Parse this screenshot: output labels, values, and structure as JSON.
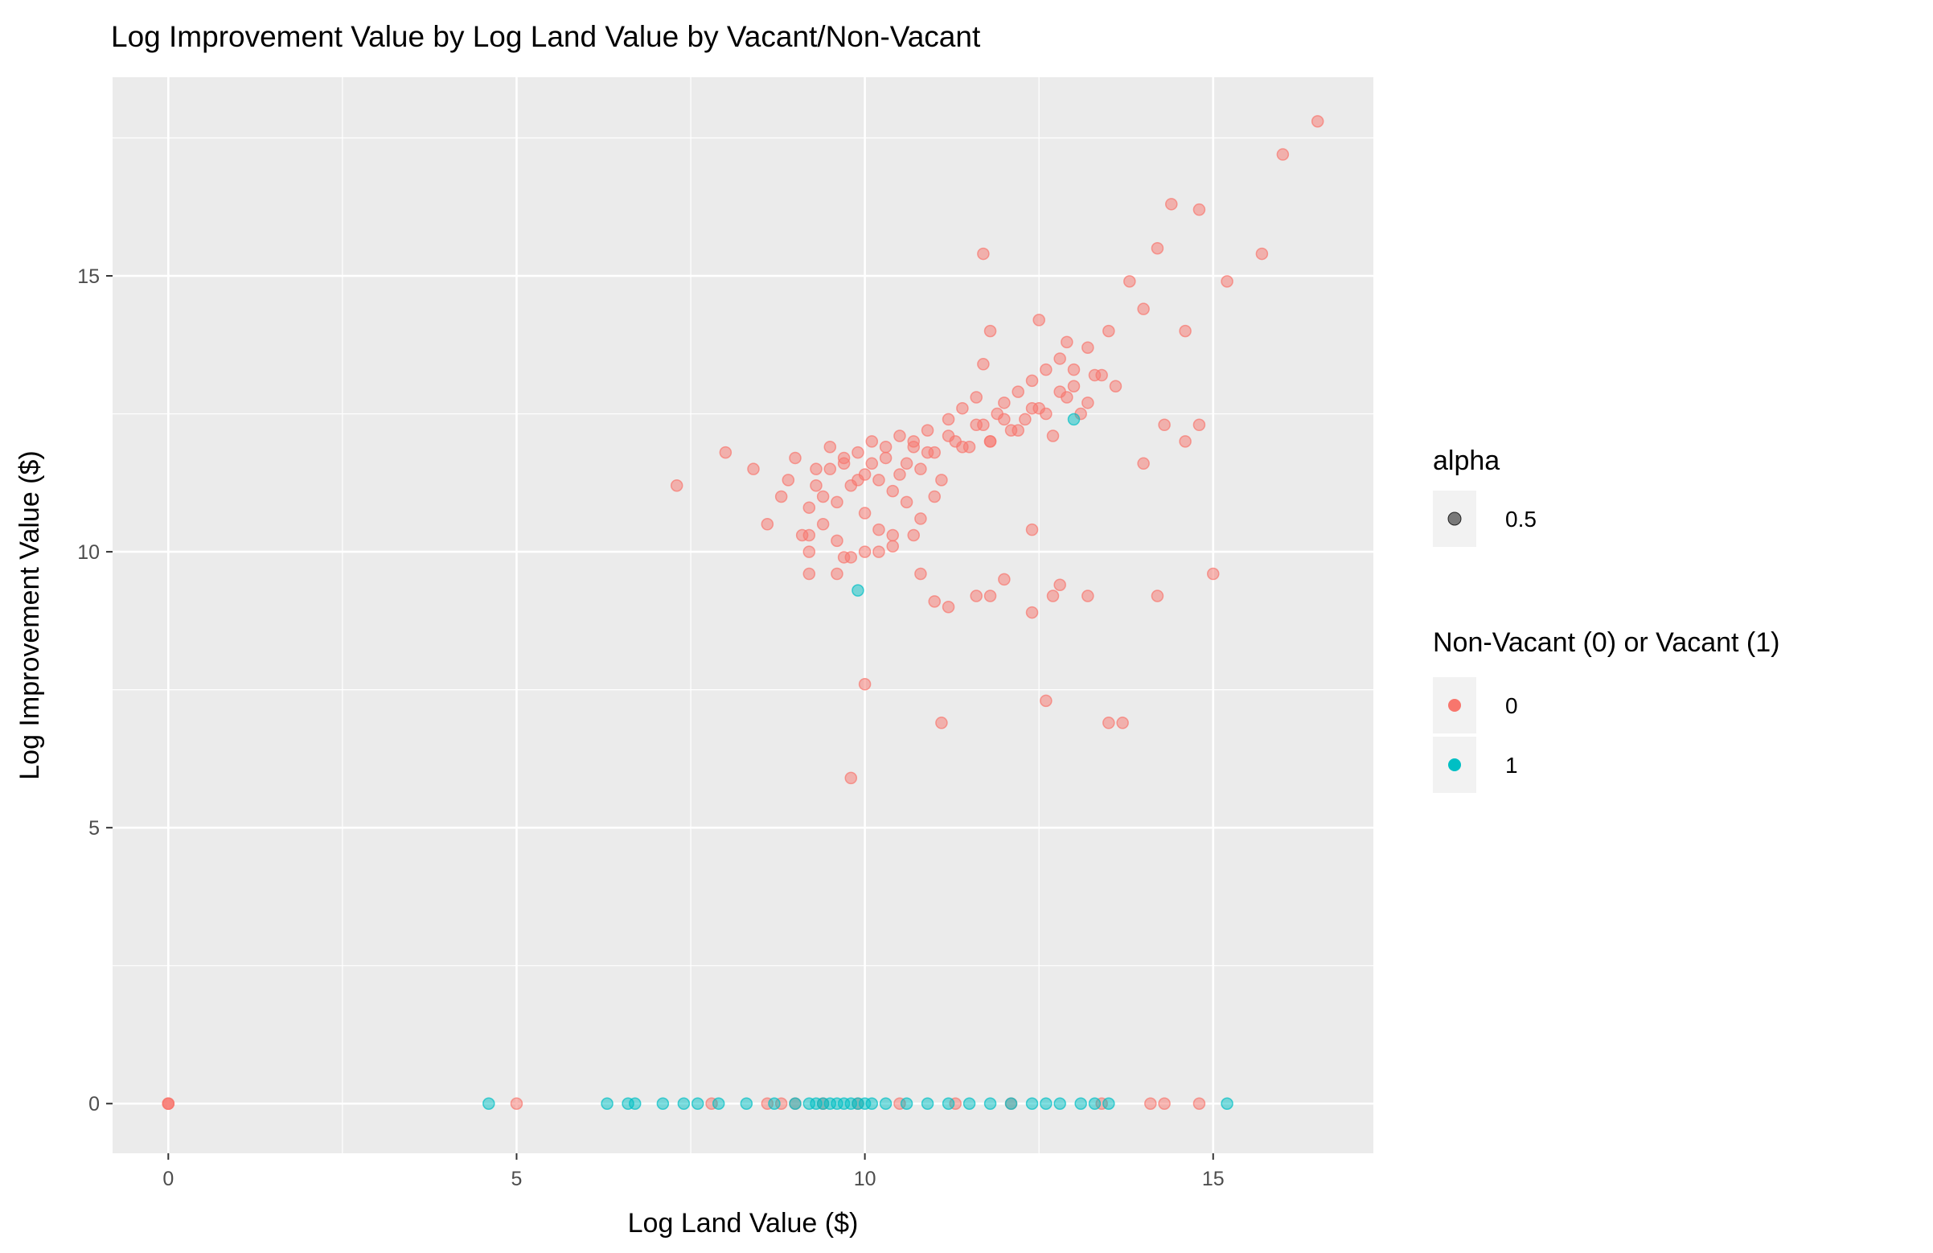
{
  "chart_data": {
    "type": "scatter",
    "title": "Log Improvement Value by Log Land Value by Vacant/Non-Vacant",
    "xlabel": "Log Land Value ($)",
    "ylabel": "Log Improvement Value ($)",
    "xlim": [
      -0.8,
      17.3
    ],
    "ylim": [
      -0.9,
      18.6
    ],
    "x_ticks": [
      0,
      5,
      10,
      15
    ],
    "y_ticks": [
      0,
      5,
      10,
      15
    ],
    "x_tick_labels": [
      "0",
      "5",
      "10",
      "15"
    ],
    "y_tick_labels": [
      "0",
      "5",
      "10",
      "15"
    ],
    "grid": true,
    "point_alpha": 0.5,
    "legend_position": "right",
    "legends": [
      {
        "title": "alpha",
        "entries": [
          {
            "label": "0.5",
            "color": "#000000"
          }
        ]
      },
      {
        "title": "Non-Vacant (0) or Vacant (1)",
        "entries": [
          {
            "label": "0",
            "color": "#F8766D"
          },
          {
            "label": "1",
            "color": "#00BFC4"
          }
        ]
      }
    ],
    "series": [
      {
        "name": "0",
        "color": "#F8766D",
        "x": [
          0,
          0,
          0,
          5.0,
          7.3,
          8.0,
          8.4,
          8.6,
          8.8,
          8.9,
          9.0,
          9.1,
          9.2,
          9.3,
          9.4,
          9.5,
          9.6,
          9.7,
          9.8,
          9.9,
          10.0,
          10.1,
          10.2,
          10.3,
          10.4,
          10.5,
          10.6,
          10.7,
          10.8,
          10.9,
          11.0,
          11.1,
          11.2,
          11.3,
          11.4,
          11.5,
          11.6,
          11.7,
          11.8,
          11.9,
          12.0,
          12.1,
          12.2,
          12.3,
          12.4,
          12.5,
          12.6,
          12.7,
          12.8,
          12.9,
          13.0,
          13.1,
          13.2,
          13.3,
          13.5,
          13.8,
          14.0,
          14.2,
          14.4,
          14.6,
          14.8,
          15.0,
          15.2,
          15.7,
          16.0,
          16.5,
          9.2,
          9.4,
          9.6,
          9.8,
          10.0,
          10.2,
          10.4,
          10.6,
          10.8,
          11.0,
          9.3,
          9.5,
          9.7,
          9.9,
          10.1,
          10.3,
          10.5,
          10.7,
          10.9,
          11.2,
          11.4,
          11.6,
          11.8,
          12.0,
          12.2,
          12.4,
          12.6,
          12.8,
          13.0,
          13.2,
          13.4,
          9.2,
          9.6,
          10.0,
          10.4,
          10.8,
          11.2,
          11.6,
          12.0,
          12.4,
          12.8,
          13.2,
          11.7,
          12.6,
          11.0,
          11.1,
          11.8,
          12.7,
          13.5,
          13.7,
          9.8,
          10.0,
          11.8,
          12.5,
          12.9,
          14.2,
          11.7,
          12.4,
          14.0,
          14.3,
          14.6,
          14.8,
          13.6,
          10.2,
          10.7,
          9.7,
          9.2,
          7.8,
          8.6,
          8.8,
          9.0,
          9.4,
          9.9,
          10.5,
          11.3,
          12.1,
          13.4,
          14.1,
          14.3,
          14.8
        ],
        "y": [
          0,
          0,
          0,
          0,
          11.2,
          11.8,
          11.5,
          10.5,
          11.0,
          11.3,
          11.7,
          10.3,
          10.8,
          11.5,
          11.0,
          11.9,
          10.9,
          11.6,
          11.2,
          11.8,
          11.4,
          12.0,
          11.3,
          11.7,
          11.1,
          12.1,
          11.6,
          11.9,
          11.5,
          12.2,
          11.8,
          11.3,
          12.4,
          12.0,
          12.6,
          11.9,
          12.8,
          12.3,
          12.0,
          12.5,
          12.7,
          12.2,
          12.9,
          12.4,
          13.1,
          12.6,
          13.3,
          12.1,
          13.5,
          12.8,
          13.0,
          12.5,
          13.7,
          13.2,
          14.0,
          14.9,
          14.4,
          15.5,
          16.3,
          14.0,
          16.2,
          9.6,
          14.9,
          15.4,
          17.2,
          17.8,
          10.0,
          10.5,
          10.2,
          9.9,
          10.7,
          10.4,
          10.1,
          10.9,
          10.6,
          11.0,
          11.2,
          11.5,
          11.7,
          11.3,
          11.6,
          11.9,
          11.4,
          12.0,
          11.8,
          12.1,
          11.9,
          12.3,
          12.0,
          12.4,
          12.2,
          12.6,
          12.5,
          12.9,
          13.3,
          12.7,
          13.2,
          9.6,
          9.6,
          10.0,
          10.3,
          9.6,
          9.0,
          9.2,
          9.5,
          8.9,
          9.4,
          9.2,
          15.4,
          7.3,
          9.1,
          6.9,
          9.2,
          9.2,
          6.9,
          6.9,
          5.9,
          7.6,
          14.0,
          14.2,
          13.8,
          9.2,
          13.4,
          10.4,
          11.6,
          12.3,
          12.0,
          12.3,
          13.0,
          10.0,
          10.3,
          9.9,
          10.3,
          0,
          0,
          0,
          0,
          0,
          0,
          0,
          0,
          0,
          0,
          0,
          0,
          0
        ]
      },
      {
        "name": "1",
        "color": "#00BFC4",
        "x": [
          4.6,
          6.3,
          6.6,
          6.7,
          7.1,
          7.4,
          7.6,
          7.9,
          8.3,
          8.7,
          9.0,
          9.2,
          9.3,
          9.4,
          9.5,
          9.6,
          9.7,
          9.8,
          9.9,
          10.0,
          10.1,
          10.3,
          10.6,
          10.9,
          11.2,
          11.5,
          11.8,
          12.1,
          12.4,
          12.6,
          12.8,
          13.1,
          13.3,
          13.5,
          15.2,
          9.9,
          13.0
        ],
        "y": [
          0,
          0,
          0,
          0,
          0,
          0,
          0,
          0,
          0,
          0,
          0,
          0,
          0,
          0,
          0,
          0,
          0,
          0,
          0,
          0,
          0,
          0,
          0,
          0,
          0,
          0,
          0,
          0,
          0,
          0,
          0,
          0,
          0,
          0,
          0,
          9.3,
          12.4
        ]
      }
    ]
  }
}
